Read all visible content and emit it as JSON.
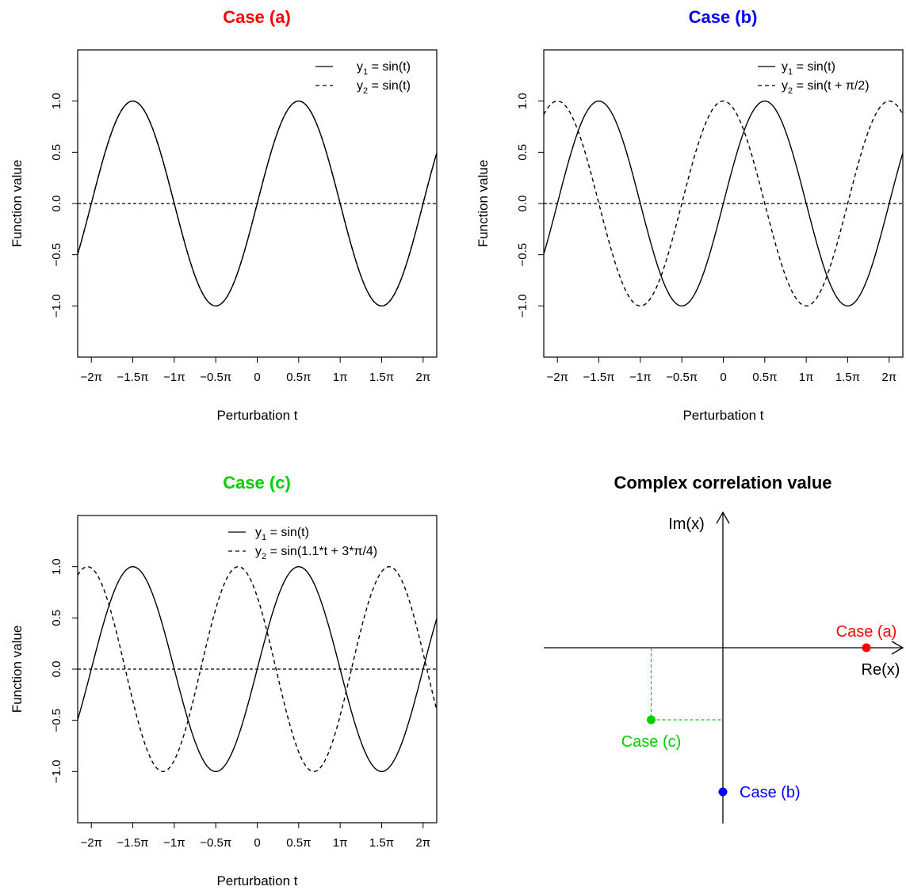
{
  "chart_data": [
    {
      "type": "line",
      "title": "Case (a)",
      "title_color": "#ff0000",
      "xlabel": "Perturbation t",
      "ylabel": "Function value",
      "xlim": [
        -6.8,
        6.8
      ],
      "ylim": [
        -1.5,
        1.5
      ],
      "x_ticks": [
        -6.2832,
        -4.7124,
        -3.1416,
        -1.5708,
        0,
        1.5708,
        3.1416,
        4.7124,
        6.2832
      ],
      "x_tick_labels": [
        "−2π",
        "−1.5π",
        "−1π",
        "−0.5π",
        "0",
        "0.5π",
        "1π",
        "1.5π",
        "2π"
      ],
      "y_ticks": [
        -1,
        -0.5,
        0,
        0.5,
        1
      ],
      "y_tick_labels": [
        "−1.0",
        "−0.5",
        "0.0",
        "0.5",
        "1.0"
      ],
      "reference_line_y": 0,
      "legend_position": "top-right",
      "series": [
        {
          "name_base": "y",
          "name_sub": "1",
          "name_rest": " = sin(t)",
          "function": "sin(t)",
          "amplitude": 1,
          "frequency": 1,
          "phase": 0,
          "style": "solid"
        },
        {
          "name_base": "y",
          "name_sub": "2",
          "name_rest": " = sin(t)",
          "function": "sin(t)",
          "amplitude": 1,
          "frequency": 1,
          "phase": 0,
          "style": "dashed"
        }
      ]
    },
    {
      "type": "line",
      "title": "Case (b)",
      "title_color": "#0000ff",
      "xlabel": "Perturbation t",
      "ylabel": "Function value",
      "xlim": [
        -6.8,
        6.8
      ],
      "ylim": [
        -1.5,
        1.5
      ],
      "x_ticks": [
        -6.2832,
        -4.7124,
        -3.1416,
        -1.5708,
        0,
        1.5708,
        3.1416,
        4.7124,
        6.2832
      ],
      "x_tick_labels": [
        "−2π",
        "−1.5π",
        "−1π",
        "−0.5π",
        "0",
        "0.5π",
        "1π",
        "1.5π",
        "2π"
      ],
      "y_ticks": [
        -1,
        -0.5,
        0,
        0.5,
        1
      ],
      "y_tick_labels": [
        "−1.0",
        "−0.5",
        "0.0",
        "0.5",
        "1.0"
      ],
      "reference_line_y": 0,
      "legend_position": "top-right",
      "series": [
        {
          "name_base": "y",
          "name_sub": "1",
          "name_rest": " = sin(t)",
          "function": "sin(t)",
          "amplitude": 1,
          "frequency": 1,
          "phase": 0,
          "style": "solid"
        },
        {
          "name_base": "y",
          "name_sub": "2",
          "name_rest": " = sin(t + π/2)",
          "function": "sin(t + π/2)",
          "amplitude": 1,
          "frequency": 1,
          "phase": 1.5708,
          "style": "dashed"
        }
      ]
    },
    {
      "type": "line",
      "title": "Case (c)",
      "title_color": "#00cd00",
      "xlabel": "Perturbation t",
      "ylabel": "Function value",
      "xlim": [
        -6.8,
        6.8
      ],
      "ylim": [
        -1.5,
        1.5
      ],
      "x_ticks": [
        -6.2832,
        -4.7124,
        -3.1416,
        -1.5708,
        0,
        1.5708,
        3.1416,
        4.7124,
        6.2832
      ],
      "x_tick_labels": [
        "−2π",
        "−1.5π",
        "−1π",
        "−0.5π",
        "0",
        "0.5π",
        "1π",
        "1.5π",
        "2π"
      ],
      "y_ticks": [
        -1,
        -0.5,
        0,
        0.5,
        1
      ],
      "y_tick_labels": [
        "−1.0",
        "−0.5",
        "0.0",
        "0.5",
        "1.0"
      ],
      "reference_line_y": 0,
      "legend_position": "top-right",
      "series": [
        {
          "name_base": "y",
          "name_sub": "1",
          "name_rest": " = sin(t)",
          "function": "sin(t)",
          "amplitude": 1,
          "frequency": 1,
          "phase": 0,
          "style": "solid"
        },
        {
          "name_base": "y",
          "name_sub": "2",
          "name_rest": " = sin(1.1*t + 3*π/4)",
          "function": "sin(1.1*t + 3*π/4)",
          "amplitude": 1,
          "frequency": 1.1,
          "phase": 2.3562,
          "style": "dashed"
        }
      ]
    },
    {
      "type": "scatter",
      "title": "Complex correlation value",
      "title_color": "#000000",
      "x_axis_label": "Re(x)",
      "y_axis_label": "Im(x)",
      "xlim": [
        -1.25,
        1.25
      ],
      "ylim": [
        -1.25,
        1.25
      ],
      "points": [
        {
          "label": "Case (a)",
          "re": 1.0,
          "im": 0.0,
          "color": "#ff0000",
          "label_position": "above"
        },
        {
          "label": "Case (b)",
          "re": 0.0,
          "im": -1.0,
          "color": "#0000ff",
          "label_position": "right"
        },
        {
          "label": "Case (c)",
          "re": -0.5,
          "im": -0.5,
          "color": "#00cd00",
          "label_position": "below",
          "projection_lines": true
        }
      ]
    }
  ]
}
